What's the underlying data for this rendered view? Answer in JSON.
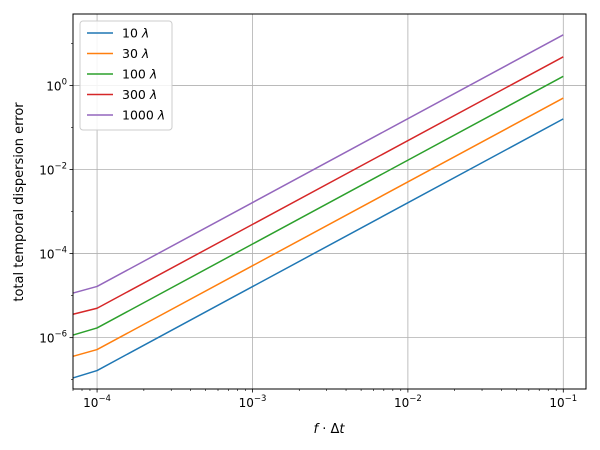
{
  "chart_data": {
    "type": "line",
    "xscale": "log",
    "yscale": "log",
    "xlim": [
      7e-05,
      0.14
    ],
    "ylim": [
      6e-08,
      50
    ],
    "grid": true,
    "legend_position": "top-left",
    "xlabel": {
      "base": "f",
      "op": " · Δ",
      "var": "t"
    },
    "ylabel": "total temporal dispersion error",
    "xticks": [
      {
        "value": 0.0001,
        "base": "10",
        "exp": "−4"
      },
      {
        "value": 0.001,
        "base": "10",
        "exp": "−3"
      },
      {
        "value": 0.01,
        "base": "10",
        "exp": "−2"
      },
      {
        "value": 0.1,
        "base": "10",
        "exp": "−1"
      }
    ],
    "yticks": [
      {
        "value": 1e-06,
        "base": "10",
        "exp": "−6"
      },
      {
        "value": 0.0001,
        "base": "10",
        "exp": "−4"
      },
      {
        "value": 0.01,
        "base": "10",
        "exp": "−2"
      },
      {
        "value": 1,
        "base": "10",
        "exp": "0"
      }
    ],
    "x": [
      7e-05,
      0.0001,
      0.1
    ],
    "series": [
      {
        "name": "10",
        "unit": "λ",
        "color": "#1f77b4",
        "values": [
          1.1e-07,
          1.65e-07,
          0.16
        ]
      },
      {
        "name": "30",
        "unit": "λ",
        "color": "#ff7f0e",
        "values": [
          3.6e-07,
          5.2e-07,
          0.5
        ]
      },
      {
        "name": "100",
        "unit": "λ",
        "color": "#2ca02c",
        "values": [
          1.15e-06,
          1.7e-06,
          1.65
        ]
      },
      {
        "name": "300",
        "unit": "λ",
        "color": "#d62728",
        "values": [
          3.6e-06,
          5e-06,
          4.8
        ]
      },
      {
        "name": "1000",
        "unit": "λ",
        "color": "#9467bd",
        "values": [
          1.15e-05,
          1.65e-05,
          16.0
        ]
      }
    ]
  }
}
